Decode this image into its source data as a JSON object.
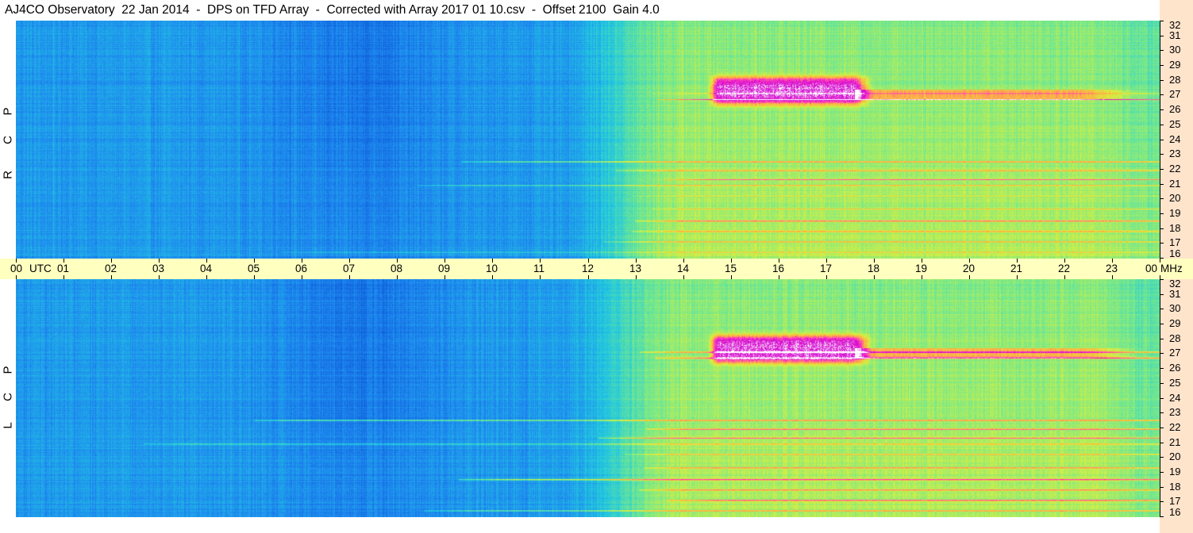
{
  "window": {
    "title": "AJ4CO Observatory  22 Jan 2014  -  DPS on TFD Array  -  Corrected with Array 2017 01 10.csv  -  Offset 2100  Gain 4.0"
  },
  "panes": [
    {
      "id": "rcp",
      "letters": [
        "R",
        "C",
        "P"
      ]
    },
    {
      "id": "lcp",
      "letters": [
        "L",
        "C",
        "P"
      ]
    }
  ],
  "chart_data": {
    "type": "heatmap",
    "title": "AJ4CO Observatory  22 Jan 2014  -  DPS on TFD Array  -  Corrected with Array 2017 01 10.csv  -  Offset 2100  Gain 4.0",
    "x": {
      "ticks": [
        "00",
        "01",
        "02",
        "03",
        "04",
        "05",
        "06",
        "07",
        "08",
        "09",
        "10",
        "11",
        "12",
        "13",
        "14",
        "15",
        "16",
        "17",
        "18",
        "19",
        "20",
        "21",
        "22",
        "23",
        "00"
      ],
      "unit": "UTC",
      "range": [
        0,
        24
      ]
    },
    "y": {
      "ticks": [
        "16",
        "17",
        "18",
        "19",
        "20",
        "21",
        "22",
        "23",
        "24",
        "25",
        "26",
        "27",
        "28",
        "29",
        "30",
        "31",
        "32"
      ],
      "unit": "MHz",
      "range": [
        16,
        32
      ]
    },
    "panels": [
      "R C P",
      "L C P"
    ],
    "colormap": [
      "#0a4fd0",
      "#1e88f0",
      "#22c8e0",
      "#70e890",
      "#d8f040",
      "#ffb040",
      "#ff40c0",
      "#d000d0",
      "#ffffff"
    ],
    "features": {
      "quiet_hours": [
        0,
        12
      ],
      "active_hours": [
        12,
        24
      ],
      "strong_emission": {
        "hours": [
          14.7,
          17.6
        ],
        "mhz": [
          26.3,
          28.3
        ]
      },
      "interference_lines_mhz": [
        16.4,
        17.1,
        17.8,
        18.5,
        19.3,
        20.2,
        20.9,
        21.3,
        21.9,
        22.5,
        26.7,
        27.1
      ]
    }
  }
}
